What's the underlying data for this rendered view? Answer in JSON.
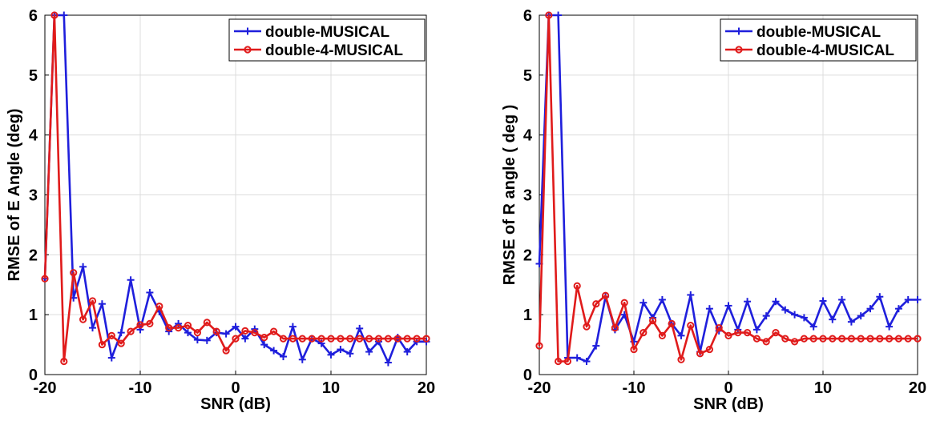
{
  "chart_data": [
    {
      "type": "line",
      "title": "",
      "xlabel": "SNR (dB)",
      "ylabel": "RMSE of E Angle (deg)",
      "xlim": [
        -20,
        20
      ],
      "ylim": [
        0,
        6
      ],
      "xticks": [
        -20,
        -10,
        0,
        10,
        20
      ],
      "yticks": [
        0,
        1,
        2,
        3,
        4,
        5,
        6
      ],
      "xtick_labels": [
        "-20",
        "-10",
        "0",
        "10",
        "20"
      ],
      "ytick_labels": [
        "0",
        "1",
        "2",
        "3",
        "4",
        "5",
        "6"
      ],
      "grid": true,
      "legend_position": "top-right",
      "x": [
        -20,
        -19,
        -18,
        -17,
        -16,
        -15,
        -14,
        -13,
        -12,
        -11,
        -10,
        -9,
        -8,
        -7,
        -6,
        -5,
        -4,
        -3,
        -2,
        -1,
        0,
        1,
        2,
        3,
        4,
        5,
        6,
        7,
        8,
        9,
        10,
        11,
        12,
        13,
        14,
        15,
        16,
        17,
        18,
        19,
        20
      ],
      "series": [
        {
          "name": "double-MUSICAL",
          "color": "#1f1fdc",
          "marker": "plus",
          "values": [
            1.6,
            6.0,
            6.0,
            1.28,
            1.8,
            0.78,
            1.18,
            0.28,
            0.7,
            1.58,
            0.75,
            1.37,
            1.05,
            0.72,
            0.85,
            0.7,
            0.58,
            0.57,
            0.7,
            0.68,
            0.8,
            0.6,
            0.76,
            0.5,
            0.4,
            0.3,
            0.8,
            0.25,
            0.6,
            0.52,
            0.33,
            0.42,
            0.35,
            0.77,
            0.38,
            0.55,
            0.2,
            0.62,
            0.38,
            0.55,
            0.55
          ]
        },
        {
          "name": "double-4-MUSICAL",
          "color": "#e01b1b",
          "marker": "circle",
          "values": [
            1.6,
            6.0,
            0.22,
            1.7,
            0.92,
            1.23,
            0.5,
            0.65,
            0.52,
            0.72,
            0.83,
            0.85,
            1.14,
            0.78,
            0.78,
            0.82,
            0.7,
            0.87,
            0.72,
            0.4,
            0.6,
            0.73,
            0.7,
            0.62,
            0.72,
            0.6,
            0.6,
            0.6,
            0.6,
            0.6,
            0.6,
            0.6,
            0.6,
            0.6,
            0.6,
            0.6,
            0.6,
            0.6,
            0.6,
            0.6,
            0.6
          ]
        }
      ]
    },
    {
      "type": "line",
      "title": "",
      "xlabel": "SNR (dB)",
      "ylabel": "RMSE of R angle ( deg )",
      "xlim": [
        -20,
        20
      ],
      "ylim": [
        0,
        6
      ],
      "xticks": [
        -20,
        -10,
        0,
        10,
        20
      ],
      "yticks": [
        0,
        1,
        2,
        3,
        4,
        5,
        6
      ],
      "xtick_labels": [
        "-20",
        "-10",
        "0",
        "10",
        "20"
      ],
      "ytick_labels": [
        "0",
        "1",
        "2",
        "3",
        "4",
        "5",
        "6"
      ],
      "grid": true,
      "legend_position": "top-right",
      "x": [
        -20,
        -19,
        -18,
        -17,
        -16,
        -15,
        -14,
        -13,
        -12,
        -11,
        -10,
        -9,
        -8,
        -7,
        -6,
        -5,
        -4,
        -3,
        -2,
        -1,
        0,
        1,
        2,
        3,
        4,
        5,
        6,
        7,
        8,
        9,
        10,
        11,
        12,
        13,
        14,
        15,
        16,
        17,
        18,
        19,
        20
      ],
      "series": [
        {
          "name": "double-MUSICAL",
          "color": "#1f1fdc",
          "marker": "plus",
          "values": [
            1.85,
            6.0,
            6.0,
            0.28,
            0.28,
            0.22,
            0.48,
            1.3,
            0.75,
            1.0,
            0.55,
            1.2,
            0.95,
            1.25,
            0.85,
            0.65,
            1.33,
            0.38,
            1.1,
            0.73,
            1.15,
            0.75,
            1.22,
            0.75,
            0.98,
            1.22,
            1.08,
            1.0,
            0.95,
            0.8,
            1.23,
            0.92,
            1.25,
            0.88,
            0.98,
            1.1,
            1.3,
            0.8,
            1.1,
            1.25,
            1.25
          ]
        },
        {
          "name": "double-4-MUSICAL",
          "color": "#e01b1b",
          "marker": "circle",
          "values": [
            0.48,
            6.0,
            0.22,
            0.22,
            1.48,
            0.8,
            1.18,
            1.32,
            0.78,
            1.2,
            0.42,
            0.7,
            0.9,
            0.65,
            0.85,
            0.25,
            0.82,
            0.35,
            0.42,
            0.78,
            0.65,
            0.7,
            0.7,
            0.6,
            0.55,
            0.7,
            0.6,
            0.55,
            0.6,
            0.6,
            0.6,
            0.6,
            0.6,
            0.6,
            0.6,
            0.6,
            0.6,
            0.6,
            0.6,
            0.6,
            0.6
          ]
        }
      ]
    }
  ]
}
